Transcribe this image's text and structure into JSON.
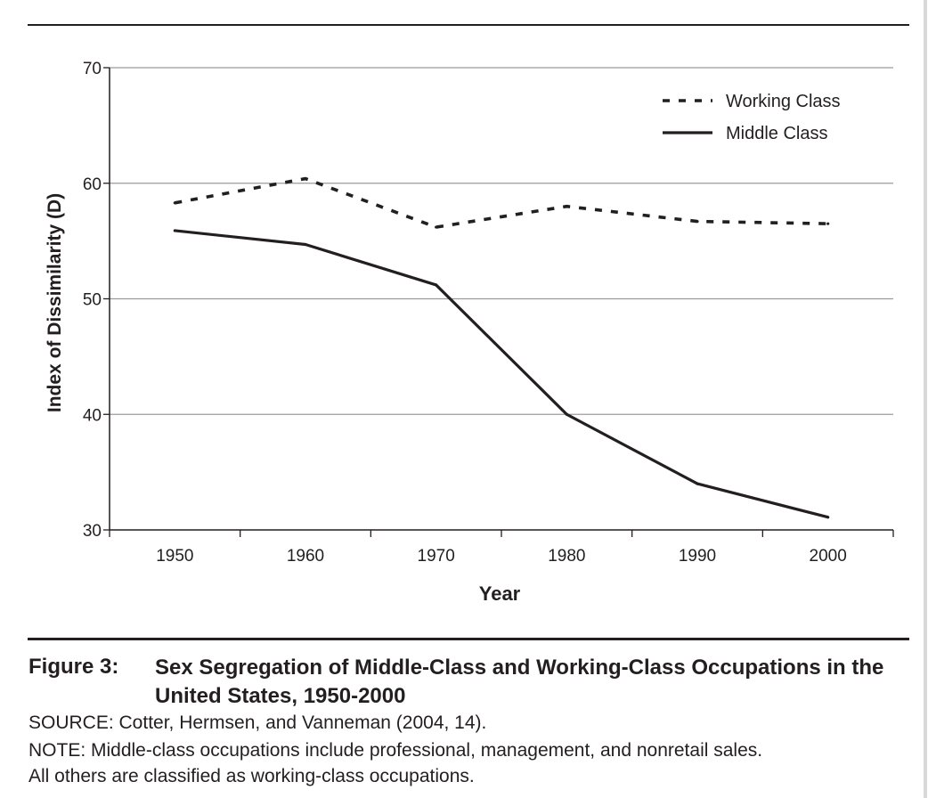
{
  "chart_data": {
    "type": "line",
    "x": [
      1950,
      1960,
      1970,
      1980,
      1990,
      2000
    ],
    "series": [
      {
        "name": "Working Class",
        "style": "dotted",
        "values": [
          58.3,
          60.4,
          56.2,
          58.0,
          56.7,
          56.5
        ]
      },
      {
        "name": "Middle Class",
        "style": "solid",
        "values": [
          55.9,
          54.7,
          51.2,
          40.0,
          34.0,
          31.1
        ]
      }
    ],
    "xlabel": "Year",
    "ylabel": "Index of Dissimilarity (D)",
    "ylim": [
      30,
      70
    ],
    "yticks": [
      30,
      40,
      50,
      60,
      70
    ],
    "xticks": [
      "1950",
      "1960",
      "1970",
      "1980",
      "1990",
      "2000"
    ],
    "grid": true,
    "legend_position": "top-right",
    "colors": {
      "line": "#231f20",
      "grid": "#9b9b9b"
    }
  },
  "caption": {
    "label": "Figure 3:",
    "title": "Sex Segregation of Middle-Class and Working-Class Occupations in the United States, 1950-2000",
    "source": "SOURCE: Cotter, Hermsen, and Vanneman (2004, 14).",
    "note": "NOTE: Middle-class occupations include professional, management, and nonretail sales.",
    "note_continued": "All others are classified as working-class occupations."
  }
}
